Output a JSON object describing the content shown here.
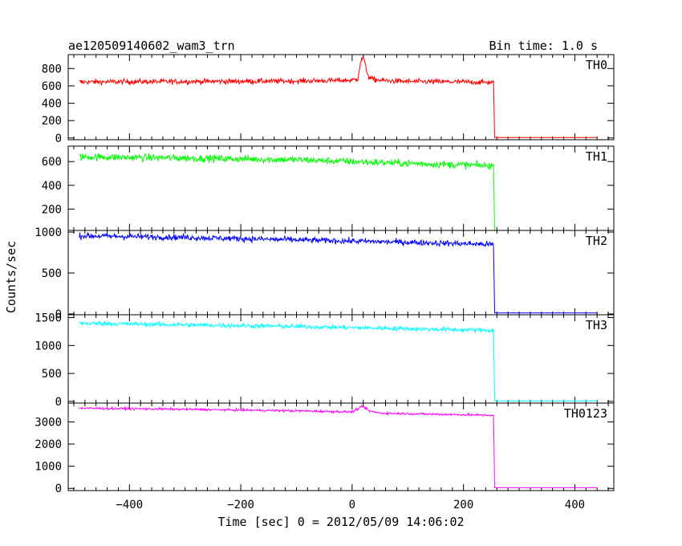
{
  "header": {
    "obs_label": "ae120509140602_wam3_trn",
    "bin_label": "Bin time: 1.0 s"
  },
  "axes": {
    "ylabel": "Counts/sec",
    "xlabel": "Time [sec] 0 = 2012/05/09 14:06:02"
  },
  "chart_data": {
    "type": "line",
    "x_ticks": [
      -400,
      -200,
      0,
      200,
      400
    ],
    "xlim": [
      -510,
      470
    ],
    "x_step": 1,
    "grid": false,
    "panels": [
      {
        "name": "TH0",
        "color": "#ff0000",
        "ylim": [
          -20,
          960
        ],
        "y_ticks": [
          0,
          200,
          400,
          600,
          800
        ],
        "segments": [
          {
            "x": [
              -490,
              -300,
              -100,
              0,
              10,
              15,
              20,
              25,
              30,
              40,
              60,
              100,
              200,
              254
            ],
            "y": [
              645,
              650,
              655,
              665,
              680,
              870,
              940,
              800,
              700,
              670,
              660,
              650,
              645,
              640
            ],
            "noise": 30
          },
          {
            "x": [
              256,
              440
            ],
            "y": [
              5,
              5
            ],
            "noise": 0
          }
        ]
      },
      {
        "name": "TH1",
        "color": "#00ff00",
        "ylim": [
          20,
          730
        ],
        "y_ticks": [
          200,
          400,
          600
        ],
        "segments": [
          {
            "x": [
              -490,
              -300,
              -100,
              0,
              100,
              254
            ],
            "y": [
              640,
              630,
              615,
              600,
              585,
              565
            ],
            "noise": 30
          },
          {
            "x": [
              256,
              440
            ],
            "y": [
              20,
              20
            ],
            "noise": 0
          }
        ]
      },
      {
        "name": "TH2",
        "color": "#0000ff",
        "ylim": [
          -10,
          1020
        ],
        "y_ticks": [
          0,
          500,
          1000
        ],
        "segments": [
          {
            "x": [
              -490,
              -300,
              -100,
              0,
              100,
              254
            ],
            "y": [
              955,
              935,
              905,
              890,
              875,
              850
            ],
            "noise": 35
          },
          {
            "x": [
              256,
              440
            ],
            "y": [
              12,
              12
            ],
            "noise": 0
          }
        ]
      },
      {
        "name": "TH3",
        "color": "#00ffff",
        "ylim": [
          -30,
          1550
        ],
        "y_ticks": [
          0,
          500,
          1000,
          1500
        ],
        "segments": [
          {
            "x": [
              -490,
              -300,
              -100,
              0,
              100,
              254
            ],
            "y": [
              1400,
              1370,
              1340,
              1320,
              1300,
              1270
            ],
            "noise": 40
          },
          {
            "x": [
              256,
              440
            ],
            "y": [
              10,
              10
            ],
            "noise": 0
          }
        ]
      },
      {
        "name": "TH0123",
        "color": "#ff00ff",
        "ylim": [
          -100,
          3850
        ],
        "y_ticks": [
          0,
          1000,
          2000,
          3000
        ],
        "segments": [
          {
            "x": [
              -490,
              -300,
              -100,
              0,
              15,
              20,
              30,
              50,
              100,
              254
            ],
            "y": [
              3620,
              3570,
              3500,
              3450,
              3650,
              3700,
              3500,
              3400,
              3370,
              3300
            ],
            "noise": 50
          },
          {
            "x": [
              256,
              440
            ],
            "y": [
              30,
              30
            ],
            "noise": 0
          }
        ]
      }
    ]
  }
}
